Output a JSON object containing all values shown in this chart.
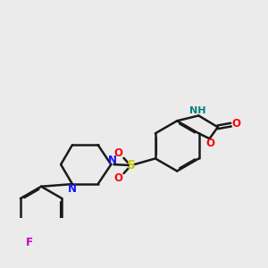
{
  "bg_color": "#ebebeb",
  "bond_color": "#1a1a1a",
  "bond_width": 1.8,
  "atom_colors": {
    "N": "#1414FF",
    "O": "#FF0000",
    "S": "#C8C800",
    "F": "#CC00CC",
    "NH": "#008080",
    "C": "#1a1a1a"
  },
  "font_size": 8.5,
  "font_size_small": 7.5
}
